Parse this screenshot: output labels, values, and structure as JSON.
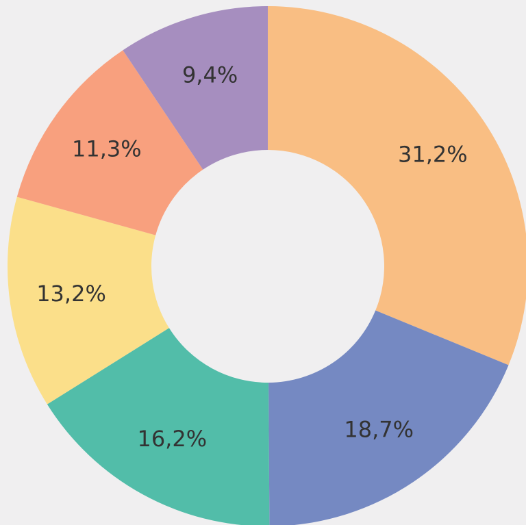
{
  "chart_data": {
    "type": "donut",
    "values": [
      31.2,
      18.7,
      16.2,
      13.2,
      11.3,
      9.4
    ],
    "value_labels": [
      "31,2%",
      "18,7%",
      "16,2%",
      "13,2%",
      "11,3%",
      "9,4%"
    ],
    "colors": [
      "#f9be83",
      "#7589c2",
      "#52bda9",
      "#fbdf8a",
      "#f8a07e",
      "#a68ebf"
    ]
  }
}
